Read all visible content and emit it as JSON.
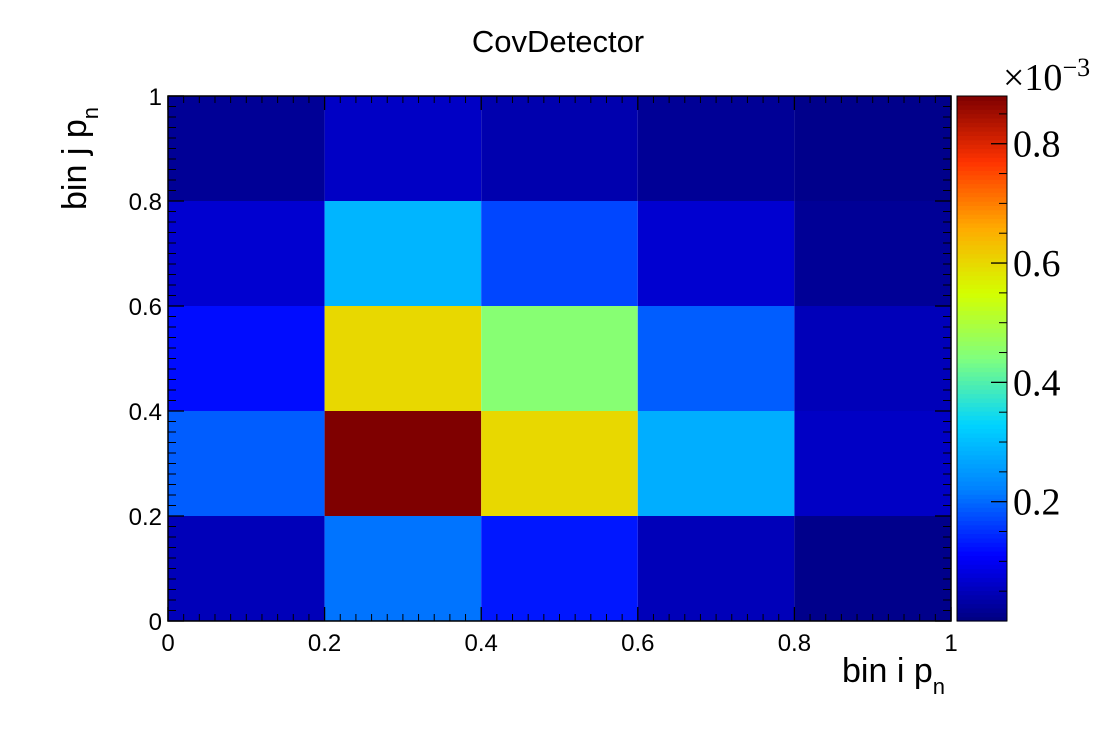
{
  "chart_data": {
    "type": "heatmap",
    "title": "CovDetector",
    "xlabel": "bin i p",
    "xlabel_sub": "n",
    "ylabel": "bin j p",
    "ylabel_sub": "n",
    "xlim": [
      0,
      1
    ],
    "ylim": [
      0,
      1
    ],
    "x_edges": [
      0,
      0.2,
      0.4,
      0.6,
      0.8,
      1.0
    ],
    "y_edges": [
      0,
      0.2,
      0.4,
      0.6,
      0.8,
      1.0
    ],
    "x_ticks": [
      "0",
      "0.2",
      "0.4",
      "0.6",
      "0.8",
      "1"
    ],
    "y_ticks": [
      "0",
      "0.2",
      "0.4",
      "0.6",
      "0.8",
      "1"
    ],
    "z_scale_label": "×10",
    "z_scale_exponent": "−3",
    "z_ticks": [
      "0.2",
      "0.4",
      "0.6",
      "0.8"
    ],
    "z_tick_values": [
      0.2,
      0.4,
      0.6,
      0.8
    ],
    "zlim": [
      0.0,
      0.88
    ],
    "z_units_note": "values ×10^-3",
    "values_rows_bottom_to_top": [
      [
        0.05,
        0.21,
        0.13,
        0.05,
        0.01
      ],
      [
        0.19,
        0.88,
        0.6,
        0.28,
        0.06
      ],
      [
        0.12,
        0.6,
        0.45,
        0.19,
        0.05
      ],
      [
        0.07,
        0.29,
        0.17,
        0.07,
        0.02
      ],
      [
        0.02,
        0.06,
        0.04,
        0.02,
        0.01
      ]
    ],
    "colormap": [
      "#00007f",
      "#0000ff",
      "#0080ff",
      "#00d4ff",
      "#7fff7f",
      "#d4ff00",
      "#ffaa00",
      "#ff3300",
      "#7f0000"
    ],
    "grid": false
  }
}
